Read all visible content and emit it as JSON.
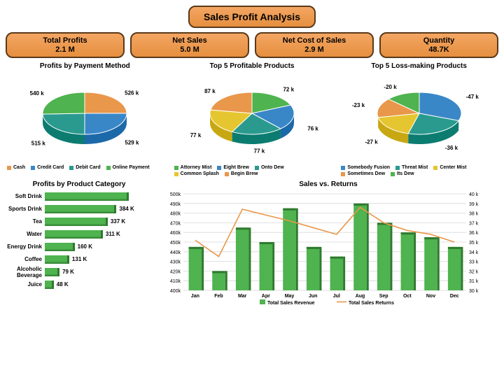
{
  "title": "Sales Profit Analysis",
  "kpis": [
    {
      "label": "Total Profits",
      "value": "2.1 M"
    },
    {
      "label": "Net Sales",
      "value": "5.0 M"
    },
    {
      "label": "Net Cost of Sales",
      "value": "2.9 M"
    },
    {
      "label": "Quantity",
      "value": "48.7K"
    }
  ],
  "kpi_style": {
    "bg_gradient": [
      "#f4a663",
      "#e58f3f"
    ],
    "border_color": "#5a3a1a",
    "border_radius": 10
  },
  "pies": [
    {
      "title": "Profits by Payment Method",
      "slices": [
        {
          "label": "Cash",
          "value": 526,
          "display": "526 k",
          "color": "#e9974a"
        },
        {
          "label": "Credit Card",
          "value": 529,
          "display": "529 k",
          "color": "#3a87c8"
        },
        {
          "label": "Debit Card",
          "value": 515,
          "display": "515 k",
          "color": "#2a9a8f"
        },
        {
          "label": "Online Payment",
          "value": 540,
          "display": "540 k",
          "color": "#4fb34f"
        }
      ],
      "legend_bullet": "square"
    },
    {
      "title": "Top 5 Profitable Products",
      "slices": [
        {
          "label": "Attorney Mist",
          "value": 72,
          "display": "72 k",
          "color": "#4fb34f"
        },
        {
          "label": "Eight Brew",
          "value": 76,
          "display": "76 k",
          "color": "#3a87c8"
        },
        {
          "label": "Onto Dew",
          "value": 77,
          "display": "77 k",
          "color": "#2a9a8f"
        },
        {
          "label": "Common Splash",
          "value": 77,
          "display": "77 k",
          "color": "#e6c630"
        },
        {
          "label": "Begin Brew",
          "value": 87,
          "display": "87 k",
          "color": "#e9974a"
        }
      ],
      "legend_bullet": "square"
    },
    {
      "title": "Top 5 Loss-making Products",
      "slices": [
        {
          "label": "Somebody Fusion",
          "value": 47,
          "display": "-47 k",
          "color": "#3a87c8"
        },
        {
          "label": "Threat Mist",
          "value": 36,
          "display": "-36 k",
          "color": "#2a9a8f"
        },
        {
          "label": "Center Mist",
          "value": 27,
          "display": "-27 k",
          "color": "#e6c630"
        },
        {
          "label": "Sometimes Dew",
          "value": 23,
          "display": "-23 k",
          "color": "#e9974a"
        },
        {
          "label": "Its Dew",
          "value": 20,
          "display": "-20 k",
          "color": "#4fb34f"
        }
      ],
      "legend_bullet": "square"
    }
  ],
  "pie_style": {
    "title_fontsize": 10,
    "label_fontsize": 8,
    "legend_fontsize": 7,
    "depth_3d": 14,
    "tilt": 0.5
  },
  "bar_h": {
    "title": "Profits by Product Category",
    "color": "#4fb34f",
    "shadow_color": "#2f7a2f",
    "max_value": 450,
    "rows": [
      {
        "label": "Soft Drink",
        "value": 450,
        "display": ""
      },
      {
        "label": "Sports Drink",
        "value": 384,
        "display": "384 K"
      },
      {
        "label": "Tea",
        "value": 337,
        "display": "337 K"
      },
      {
        "label": "Water",
        "value": 311,
        "display": "311 K"
      },
      {
        "label": "Energy Drink",
        "value": 160,
        "display": "160 K"
      },
      {
        "label": "Coffee",
        "value": 131,
        "display": "131 K"
      },
      {
        "label": "Alcoholic Beverage",
        "value": 79,
        "display": "79 K"
      },
      {
        "label": "Juice",
        "value": 48,
        "display": "48 K"
      }
    ]
  },
  "combo": {
    "title": "Sales vs. Returns",
    "months": [
      "Jan",
      "Feb",
      "Mar",
      "Apr",
      "May",
      "Jun",
      "Jul",
      "Aug",
      "Sep",
      "Oct",
      "Nov",
      "Dec"
    ],
    "revenue": [
      445,
      420,
      465,
      450,
      485,
      445,
      435,
      490,
      470,
      460,
      455,
      445
    ],
    "returns": [
      35.2,
      33.5,
      38.4,
      37.8,
      37.2,
      36.5,
      35.8,
      38.6,
      37.0,
      36.2,
      35.8,
      35.0
    ],
    "y1_min": 400,
    "y1_max": 500,
    "y1_step": 10,
    "y2_min": 30,
    "y2_max": 40,
    "y2_step": 1,
    "bar_color": "#4fb34f",
    "bar_shadow": "#2f7a2f",
    "line_color": "#e9974a",
    "grid_color": "#d8d8d8",
    "legend": [
      {
        "label": "Total Sales Revenue",
        "color": "#4fb34f",
        "type": "bar"
      },
      {
        "label": "Total Sales Returns",
        "color": "#e9974a",
        "type": "line"
      }
    ]
  }
}
